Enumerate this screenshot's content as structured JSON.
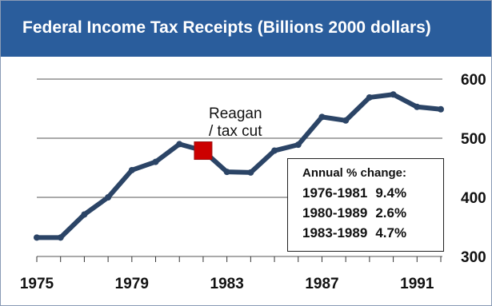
{
  "title": "Federal Income Tax Receipts (Billions 2000 dollars)",
  "colors": {
    "title_bg": "#2a5d9c",
    "line": "#2b4466",
    "marker": "#cc0000",
    "grid": "#555555"
  },
  "chart_data": {
    "type": "line",
    "title": "Federal Income Tax Receipts (Billions 2000 dollars)",
    "xlabel": "",
    "ylabel": "",
    "x_ticks": [
      "1975",
      "1979",
      "1983",
      "1987",
      "1991"
    ],
    "y_ticks": [
      "600",
      "500",
      "400",
      "300"
    ],
    "xlim": [
      1975,
      1992
    ],
    "ylim": [
      300,
      600
    ],
    "y_axis_side": "right",
    "grid": "horizontal",
    "series": [
      {
        "x": [
          1975,
          1976,
          1977,
          1978,
          1979,
          1980,
          1981,
          1982,
          1983,
          1984,
          1985,
          1986,
          1987,
          1988,
          1989,
          1990,
          1991,
          1992
        ],
        "y": [
          332,
          332,
          371,
          400,
          446,
          460,
          490,
          479,
          443,
          442,
          479,
          489,
          536,
          530,
          569,
          574,
          553,
          549
        ]
      }
    ],
    "highlight": {
      "x": 1982,
      "y": 479
    },
    "annotation": [
      "Reagan",
      "/ tax cut"
    ],
    "stats": {
      "heading": "Annual % change:",
      "rows": [
        {
          "period": "1976-1981",
          "value": "9.4%"
        },
        {
          "period": "1980-1989",
          "value": "2.6%"
        },
        {
          "period": "1983-1989",
          "value": "4.7%"
        }
      ]
    }
  }
}
